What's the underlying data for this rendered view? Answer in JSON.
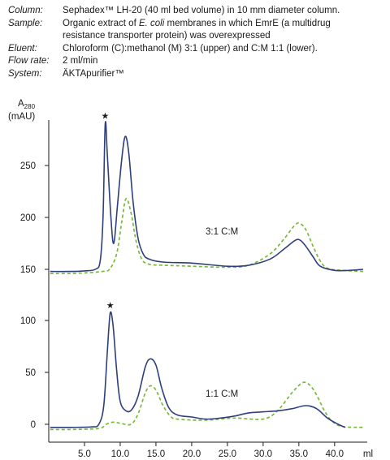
{
  "info": [
    {
      "key": "Column:",
      "lines": [
        "Sephadex™ LH-20 (40 ml bed volume) in 10 mm diameter column."
      ]
    },
    {
      "key": "Sample:",
      "lines": [
        "Organic extract of E. coli membranes in which EmrE (a multidrug",
        "resistance transporter protein) was overexpressed"
      ],
      "italic_fragment": "E. coli"
    },
    {
      "key": "Eluent:",
      "lines": [
        "Chloroform (C):methanol (M) 3:1 (upper) and C:M 1:1 (lower)."
      ]
    },
    {
      "key": "Flow rate:",
      "lines": [
        "2 ml/min"
      ]
    },
    {
      "key": "System:",
      "lines": [
        "ÄKTApurifier™"
      ]
    }
  ],
  "chart_data": {
    "type": "line",
    "ylabel": "A280",
    "ylabel_main": "A",
    "ylabel_sub": "280",
    "yunit": "(mAU)",
    "xunit": "ml",
    "xlim": [
      0,
      44
    ],
    "x_ticks": [
      "5.0",
      "10.0",
      "15.0",
      "20.0",
      "25.0",
      "30.0",
      "35.0",
      "40.0"
    ],
    "x_tick_values": [
      5,
      10,
      15,
      20,
      25,
      30,
      35,
      40
    ],
    "colors": {
      "solid": "#2e3f7c",
      "dashed": "#7cb83a",
      "axis": "#1a1a1a"
    },
    "upper": {
      "label": "3:1 C:M",
      "ylim": [
        140,
        300
      ],
      "y_ticks": [
        "150",
        "200",
        "250"
      ],
      "y_tick_values": [
        150,
        200,
        250
      ],
      "marker": {
        "symbol": "★",
        "x": 7.9,
        "y": 298
      },
      "series": [
        {
          "style": "solid",
          "color": "#2e3f7c",
          "points": [
            [
              0.2,
              148
            ],
            [
              3,
              148
            ],
            [
              5,
              148.5
            ],
            [
              6.5,
              150
            ],
            [
              7.2,
              158
            ],
            [
              7.6,
              200
            ],
            [
              7.9,
              290
            ],
            [
              8.2,
              260
            ],
            [
              8.7,
              200
            ],
            [
              9.1,
              175
            ],
            [
              9.6,
              210
            ],
            [
              10.2,
              255
            ],
            [
              10.7,
              278
            ],
            [
              11.2,
              262
            ],
            [
              11.8,
              215
            ],
            [
              12.5,
              180
            ],
            [
              13.2,
              165
            ],
            [
              14,
              160
            ],
            [
              16,
              157
            ],
            [
              20,
              156
            ],
            [
              25,
              153
            ],
            [
              28,
              154
            ],
            [
              31,
              160
            ],
            [
              33,
              170
            ],
            [
              34.5,
              178
            ],
            [
              35.2,
              178
            ],
            [
              36,
              172
            ],
            [
              37,
              162
            ],
            [
              38,
              153
            ],
            [
              40,
              149
            ],
            [
              42,
              149
            ],
            [
              44,
              150
            ]
          ]
        },
        {
          "style": "dashed",
          "color": "#7cb83a",
          "points": [
            [
              0.2,
              146
            ],
            [
              3,
              146
            ],
            [
              6,
              147
            ],
            [
              7.5,
              148
            ],
            [
              8.5,
              150
            ],
            [
              9.5,
              165
            ],
            [
              10.2,
              195
            ],
            [
              10.8,
              218
            ],
            [
              11.5,
              205
            ],
            [
              12.2,
              178
            ],
            [
              13,
              160
            ],
            [
              14,
              155
            ],
            [
              16,
              154
            ],
            [
              20,
              153
            ],
            [
              25,
              152
            ],
            [
              28,
              154
            ],
            [
              31,
              165
            ],
            [
              33,
              180
            ],
            [
              34.5,
              193
            ],
            [
              35.2,
              194
            ],
            [
              36,
              188
            ],
            [
              37,
              172
            ],
            [
              38,
              158
            ],
            [
              39,
              151
            ],
            [
              41,
              149
            ],
            [
              44,
              148
            ]
          ]
        }
      ]
    },
    "lower": {
      "label": "1:1 C:M",
      "ylim": [
        -10,
        125
      ],
      "y_ticks": [
        "0",
        "50",
        "100"
      ],
      "y_tick_values": [
        0,
        50,
        100
      ],
      "marker": {
        "symbol": "★",
        "x": 8.6,
        "y": 115
      },
      "series": [
        {
          "style": "solid",
          "color": "#2e3f7c",
          "points": [
            [
              0.2,
              -3
            ],
            [
              3,
              -3
            ],
            [
              6,
              -2.5
            ],
            [
              7,
              0
            ],
            [
              7.7,
              18
            ],
            [
              8.2,
              70
            ],
            [
              8.6,
              107
            ],
            [
              9,
              95
            ],
            [
              9.5,
              52
            ],
            [
              10,
              22
            ],
            [
              10.8,
              13
            ],
            [
              11.6,
              14
            ],
            [
              12.5,
              27
            ],
            [
              13.5,
              55
            ],
            [
              14.2,
              63
            ],
            [
              15,
              57
            ],
            [
              15.8,
              35
            ],
            [
              16.8,
              16
            ],
            [
              18,
              9
            ],
            [
              20,
              7
            ],
            [
              22,
              5
            ],
            [
              24,
              6
            ],
            [
              26,
              8
            ],
            [
              28,
              11
            ],
            [
              30,
              12
            ],
            [
              32,
              13
            ],
            [
              34,
              15
            ],
            [
              36,
              18
            ],
            [
              37.5,
              15
            ],
            [
              39,
              6
            ],
            [
              40.5,
              0
            ],
            [
              41.5,
              -3
            ]
          ]
        },
        {
          "style": "dashed",
          "color": "#7cb83a",
          "points": [
            [
              0.2,
              -5
            ],
            [
              3,
              -5
            ],
            [
              7,
              -4
            ],
            [
              8,
              0
            ],
            [
              9,
              2
            ],
            [
              10,
              1
            ],
            [
              11.5,
              0
            ],
            [
              12.5,
              10
            ],
            [
              13.5,
              30
            ],
            [
              14.2,
              37
            ],
            [
              15,
              33
            ],
            [
              16,
              18
            ],
            [
              17,
              8
            ],
            [
              18,
              5
            ],
            [
              22,
              4
            ],
            [
              26,
              6
            ],
            [
              30,
              5
            ],
            [
              32,
              13
            ],
            [
              34,
              30
            ],
            [
              35.5,
              40
            ],
            [
              36.5,
              38
            ],
            [
              37.5,
              28
            ],
            [
              38.5,
              14
            ],
            [
              39.5,
              4
            ],
            [
              41,
              -2
            ],
            [
              44,
              -3
            ]
          ]
        }
      ]
    }
  }
}
